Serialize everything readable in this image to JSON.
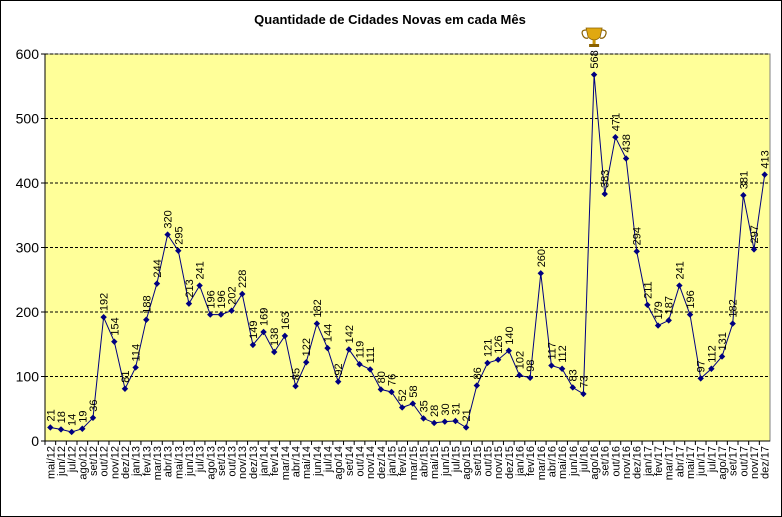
{
  "chart_data": {
    "type": "line",
    "title": "Quantidade de Cidades Novas em cada Mês",
    "xlabel": "",
    "ylabel": "",
    "ylim": [
      0,
      600
    ],
    "yticks": [
      0,
      100,
      200,
      300,
      400,
      500,
      600
    ],
    "grid": true,
    "legend": "none",
    "colors": {
      "plot_area": "#ffff99",
      "line": "#000080",
      "grid": "#000000",
      "trophy": "#c8960c"
    },
    "annotation_icon": "trophy-icon",
    "categories": [
      "mai/12",
      "jun/12",
      "jul/12",
      "ago/12",
      "set/12",
      "out/12",
      "nov/12",
      "dez/12",
      "jan/13",
      "fev/13",
      "mar/13",
      "abr/13",
      "mai/13",
      "jun/13",
      "jul/13",
      "ago/13",
      "set/13",
      "out/13",
      "nov/13",
      "dez/13",
      "jan/14",
      "fev/14",
      "mar/14",
      "abr/14",
      "mai/14",
      "jun/14",
      "jul/14",
      "ago/14",
      "set/14",
      "out/14",
      "nov/14",
      "dez/14",
      "jan/15",
      "fev/15",
      "mar/15",
      "abr/15",
      "mai/15",
      "jun/15",
      "jul/15",
      "ago/15",
      "set/15",
      "out/15",
      "nov/15",
      "dez/15",
      "jan/16",
      "fev/16",
      "mar/16",
      "abr/16",
      "mai/16",
      "jun/16",
      "jul/16",
      "ago/16",
      "set/16",
      "out/16",
      "nov/16",
      "dez/16",
      "jan/17",
      "fev/17",
      "mar/17",
      "abr/17",
      "mai/17",
      "jun/17",
      "jul/17",
      "ago/17",
      "set/17",
      "out/17",
      "nov/17",
      "dez/17"
    ],
    "series": [
      {
        "values": [
          21,
          18,
          14,
          19,
          36,
          192,
          154,
          81,
          114,
          188,
          244,
          320,
          295,
          213,
          241,
          196,
          196,
          202,
          228,
          149,
          169,
          138,
          163,
          85,
          122,
          182,
          144,
          92,
          142,
          119,
          111,
          80,
          76,
          52,
          58,
          35,
          28,
          30,
          31,
          21,
          86,
          121,
          126,
          140,
          102,
          98,
          260,
          117,
          112,
          83,
          73,
          568,
          383,
          471,
          438,
          294,
          211,
          179,
          187,
          241,
          196,
          97,
          112,
          131,
          182,
          381,
          297,
          413
        ]
      }
    ]
  }
}
